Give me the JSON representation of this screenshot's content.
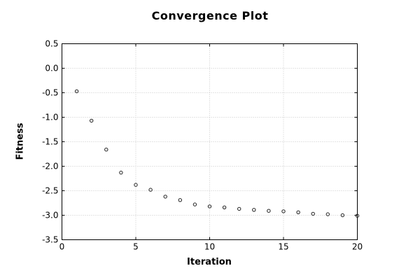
{
  "chart_data": {
    "type": "scatter",
    "title": "Convergence Plot",
    "xlabel": "Iteration",
    "ylabel": "Fitness",
    "xlim": [
      0,
      20
    ],
    "ylim": [
      -3.5,
      0.5
    ],
    "xticks": [
      0,
      5,
      10,
      15,
      20
    ],
    "xtick_labels": [
      "0",
      "5",
      "10",
      "15",
      "20"
    ],
    "yticks": [
      0.5,
      0.0,
      -0.5,
      -1.0,
      -1.5,
      -2.0,
      -2.5,
      -3.0,
      -3.5
    ],
    "ytick_labels": [
      "0.5",
      "0.0",
      "-0.5",
      "-1.0",
      "-1.5",
      "-2.0",
      "-2.5",
      "-3.0",
      "-3.5"
    ],
    "grid": true,
    "grid_style": "dotted",
    "legend": false,
    "marker": "open-circle",
    "series": [
      {
        "name": "fitness",
        "x": [
          1,
          2,
          3,
          4,
          5,
          6,
          7,
          8,
          9,
          10,
          11,
          12,
          13,
          14,
          15,
          16,
          17,
          18,
          19,
          20
        ],
        "y": [
          -0.47,
          -1.07,
          -1.66,
          -2.13,
          -2.38,
          -2.48,
          -2.62,
          -2.69,
          -2.78,
          -2.82,
          -2.84,
          -2.87,
          -2.89,
          -2.91,
          -2.92,
          -2.94,
          -2.97,
          -2.98,
          -3.0,
          -3.01
        ]
      }
    ],
    "colors": {
      "background": "#ffffff",
      "axis": "#000000",
      "grid": "#c9c9c9",
      "marker_stroke": "#222222",
      "text": "#000000"
    }
  }
}
